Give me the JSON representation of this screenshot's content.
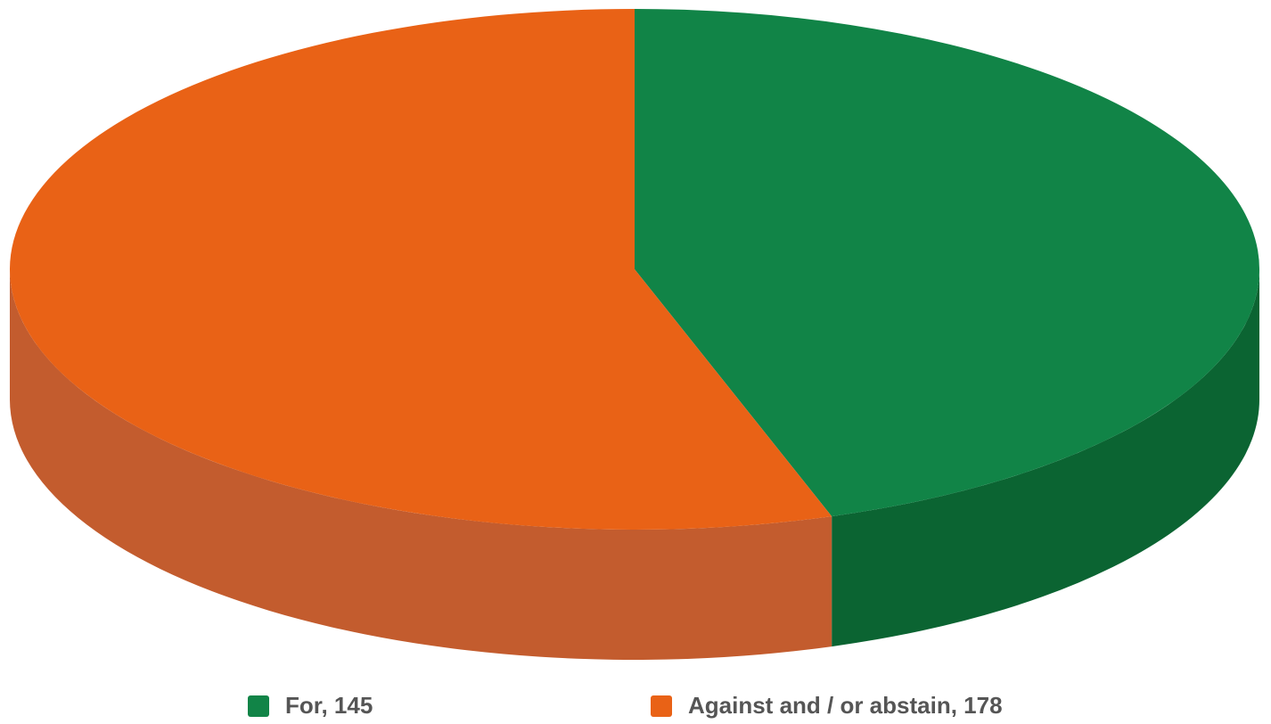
{
  "chart_data": {
    "type": "pie",
    "style": "3d",
    "slices": [
      {
        "label": "For",
        "value": 145,
        "color": "#118447",
        "side_color": "#0b6432"
      },
      {
        "label": "Against and / or abstain",
        "value": 178,
        "color": "#e96216",
        "side_color": "#c35c2e"
      }
    ],
    "legend_position": "bottom"
  },
  "legend": {
    "items": [
      {
        "text": "For, 145",
        "color": "#118447"
      },
      {
        "text": "Against and / or abstain, 178",
        "color": "#e96216"
      }
    ]
  }
}
